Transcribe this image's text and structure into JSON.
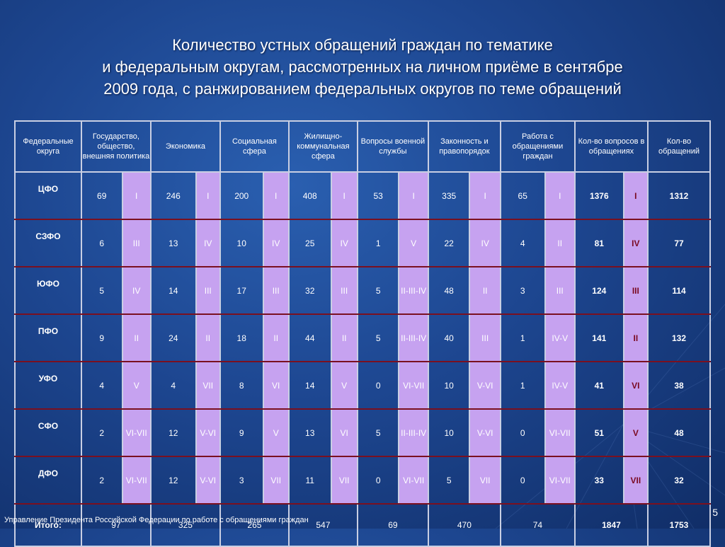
{
  "title": {
    "line1": "Количество устных обращений граждан по тематике",
    "line2": "и федеральным округам, рассмотренных на личном приёме в сентябре",
    "line3": "2009 года, с ранжированием федеральных округов по теме обращений"
  },
  "headers": {
    "region": "Федеральные округа",
    "gov": "Государство, общество, внешняя политика",
    "econ": "Экономика",
    "social": "Социальная сфера",
    "housing": "Жилищно-коммунальная сфера",
    "military": "Вопросы военной службы",
    "law": "Законность и правопорядок",
    "work": "Работа с обращениями граждан",
    "count_questions": "Кол-во вопросов в обращениях",
    "count_appeals": "Кол-во обращений"
  },
  "rows": [
    {
      "region": "ЦФО",
      "cells": [
        "69",
        "I",
        "246",
        "I",
        "200",
        "I",
        "408",
        "I",
        "53",
        "I",
        "335",
        "I",
        "65",
        "I"
      ],
      "questions": "1376",
      "rank": "I",
      "appeals": "1312"
    },
    {
      "region": "СЗФО",
      "cells": [
        "6",
        "III",
        "13",
        "IV",
        "10",
        "IV",
        "25",
        "IV",
        "1",
        "V",
        "22",
        "IV",
        "4",
        "II"
      ],
      "questions": "81",
      "rank": "IV",
      "appeals": "77"
    },
    {
      "region": "ЮФО",
      "cells": [
        "5",
        "IV",
        "14",
        "III",
        "17",
        "III",
        "32",
        "III",
        "5",
        "II-III-IV",
        "48",
        "II",
        "3",
        "III"
      ],
      "questions": "124",
      "rank": "III",
      "appeals": "114"
    },
    {
      "region": "ПФО",
      "cells": [
        "9",
        "II",
        "24",
        "II",
        "18",
        "II",
        "44",
        "II",
        "5",
        "II-III-IV",
        "40",
        "III",
        "1",
        "IV-V"
      ],
      "questions": "141",
      "rank": "II",
      "appeals": "132"
    },
    {
      "region": "УФО",
      "cells": [
        "4",
        "V",
        "4",
        "VII",
        "8",
        "VI",
        "14",
        "V",
        "0",
        "VI-VII",
        "10",
        "V-VI",
        "1",
        "IV-V"
      ],
      "questions": "41",
      "rank": "VI",
      "appeals": "38"
    },
    {
      "region": "СФО",
      "cells": [
        "2",
        "VI-VII",
        "12",
        "V-VI",
        "9",
        "V",
        "13",
        "VI",
        "5",
        "II-III-IV",
        "10",
        "V-VI",
        "0",
        "VI-VII"
      ],
      "questions": "51",
      "rank": "V",
      "appeals": "48"
    },
    {
      "region": "ДФО",
      "cells": [
        "2",
        "VI-VII",
        "12",
        "V-VI",
        "3",
        "VII",
        "11",
        "VII",
        "0",
        "VI-VII",
        "5",
        "VII",
        "0",
        "VI-VII"
      ],
      "questions": "33",
      "rank": "VII",
      "appeals": "32"
    }
  ],
  "total": {
    "label": "Итого:",
    "values": [
      "97",
      "325",
      "265",
      "547",
      "69",
      "470",
      "74"
    ],
    "questions": "1847",
    "appeals": "1753"
  },
  "footer": "Управление Президента Российской Федерации по работе с обращениями граждан",
  "page_number": "5",
  "colors": {
    "background": "#1d4690",
    "rank_cell": "#c6a2f0",
    "total_rank_text": "#7a0a22",
    "row_divider": "#7a1020"
  }
}
